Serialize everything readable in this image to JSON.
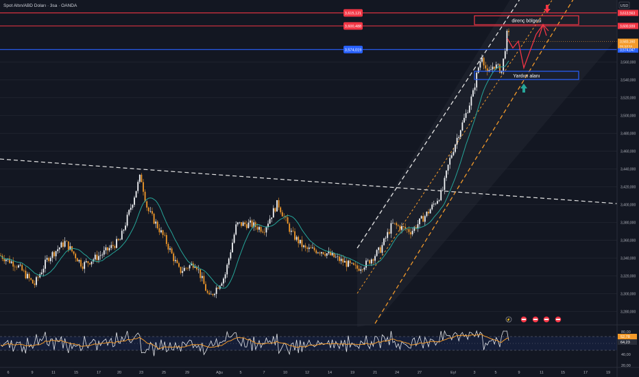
{
  "header": {
    "title": "Spot Altın/ABD Doları · 3sa · OANDA"
  },
  "currency": "USD",
  "colors": {
    "bg": "#131722",
    "up": "#f4f6f8",
    "down": "#f39a2a",
    "red": "#f23645",
    "blue": "#2962ff",
    "teal": "#26a69a",
    "rsi": "#e5e7eb",
    "rsi_ma": "#f39a2a",
    "orange_dash": "#f39a2a"
  },
  "price_axis": {
    "ticks": [
      "3,560,000",
      "3,540,000",
      "3,520,000",
      "3,500,000",
      "3,480,000",
      "3,460,000",
      "3,440,000",
      "3,420,000",
      "3,400,000",
      "3,380,000",
      "3,360,000",
      "3,340,000",
      "3,320,000",
      "3,300,000",
      "3,280,000"
    ],
    "tick_values": [
      3560,
      3540,
      3520,
      3500,
      3480,
      3460,
      3440,
      3420,
      3400,
      3380,
      3360,
      3340,
      3320,
      3300,
      3280
    ]
  },
  "time_axis": {
    "labels": [
      "6",
      "9",
      "11",
      "15",
      "17",
      "20",
      "23",
      "25",
      "29",
      "Ağu",
      "5",
      "7",
      "10",
      "12",
      "14",
      "19",
      "21",
      "24",
      "27",
      "Eyl",
      "3",
      "5",
      "9",
      "11",
      "15",
      "17",
      "19"
    ]
  },
  "levels": [
    {
      "name": "upper-resistance",
      "value": 3615.121,
      "label": "3,615,121",
      "axis_label": "3,613,563",
      "color": "#f23645"
    },
    {
      "name": "lower-resistance",
      "value": 3600.488,
      "label": "3,600,488",
      "axis_label": "3,600,939",
      "color": "#f23645"
    },
    {
      "name": "support-blue",
      "value": 3574.019,
      "label": "3,574,019",
      "axis_label": "3,574,047",
      "color": "#2962ff"
    }
  ],
  "current_price": {
    "label": "3,583,160",
    "countdown": "01:12:11"
  },
  "annotations": {
    "resistance_box": "direnç bölgesi",
    "support_box": "Yardım alanı"
  },
  "rsi": {
    "levels": [
      "80,00",
      "40,00",
      "20,00"
    ],
    "value_label": "64,23",
    "ma_label": "52,78"
  }
}
